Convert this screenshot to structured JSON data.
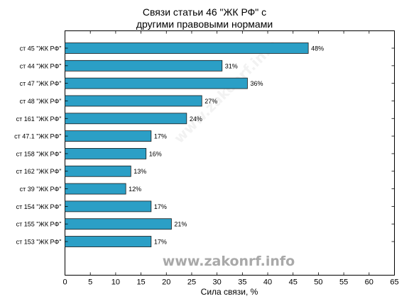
{
  "chart_data": {
    "type": "bar",
    "orientation": "horizontal",
    "title_line1": "Связи статьи 46 \"ЖК РФ\" с",
    "title_line2": "другими правовыми нормами",
    "xlabel": "Сила связи, %",
    "ylabel": "",
    "xlim": [
      0,
      65
    ],
    "xticks": [
      0,
      5,
      10,
      15,
      20,
      25,
      30,
      35,
      40,
      45,
      50,
      55,
      60,
      65
    ],
    "grid": false,
    "bar_color": "#2b9fc6",
    "categories": [
      "ст 45 \"ЖК РФ\"",
      "ст 44 \"ЖК РФ\"",
      "ст 47 \"ЖК РФ\"",
      "ст 48 \"ЖК РФ\"",
      "ст 161 \"ЖК РФ\"",
      "ст 47.1 \"ЖК РФ\"",
      "ст 158 \"ЖК РФ\"",
      "ст 162 \"ЖК РФ\"",
      "ст 39 \"ЖК РФ\"",
      "ст 154 \"ЖК РФ\"",
      "ст 155 \"ЖК РФ\"",
      "ст 153 \"ЖК РФ\""
    ],
    "values": [
      48,
      31,
      36,
      27,
      24,
      17,
      16,
      13,
      12,
      17,
      21,
      17
    ],
    "value_labels": [
      "48%",
      "31%",
      "36%",
      "27%",
      "24%",
      "17%",
      "16%",
      "13%",
      "12%",
      "17%",
      "21%",
      "17%"
    ],
    "watermark": "www.zakonrf.info",
    "watermark_diagonal": "www.zakonrf.info"
  }
}
